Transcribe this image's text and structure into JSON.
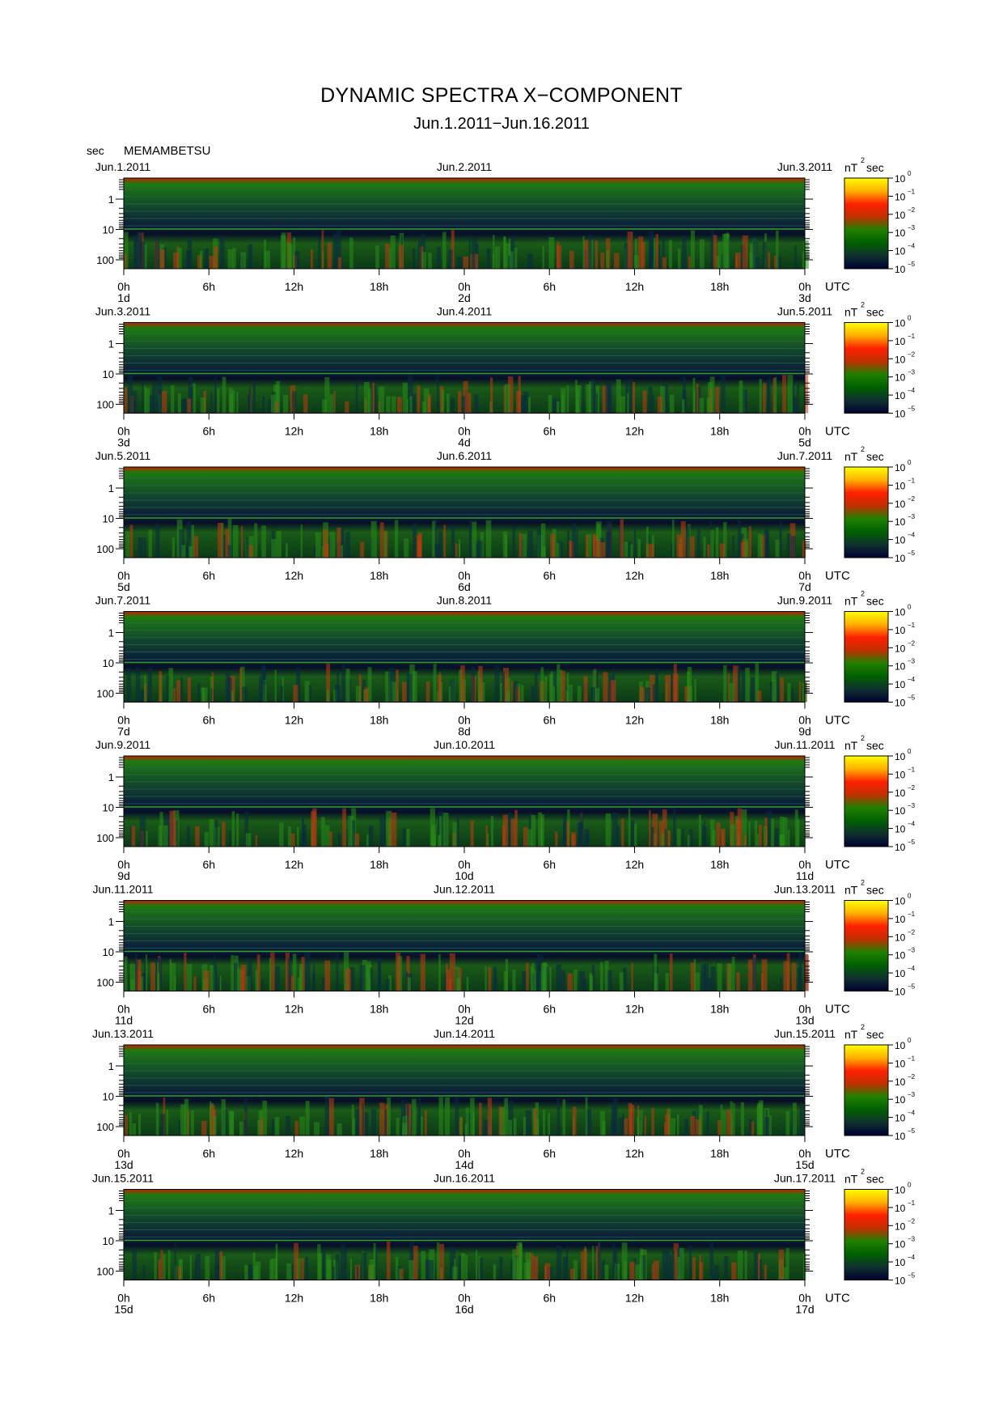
{
  "chart_data": {
    "type": "heatmap",
    "title": "DYNAMIC SPECTRA X−COMPONENT",
    "subtitle": "Jun.1.2011−Jun.16.2011",
    "ylabel": "sec",
    "station": "MEMAMBETSU",
    "xlabel_unit": "UTC",
    "colorbar_label": "nT",
    "colorbar_label_sup": "2",
    "colorbar_label_suffix": "sec",
    "colorbar_ticks": [
      {
        "base": "10",
        "exp": "0"
      },
      {
        "base": "10",
        "exp": "−1"
      },
      {
        "base": "10",
        "exp": "−2"
      },
      {
        "base": "10",
        "exp": "−3"
      },
      {
        "base": "10",
        "exp": "−4"
      },
      {
        "base": "10",
        "exp": "−5"
      }
    ],
    "colorbar_colors": [
      "#ffff00",
      "#ffb000",
      "#ff2000",
      "#c03000",
      "#208000",
      "#006000",
      "#103030",
      "#000030"
    ],
    "y_scale": "log",
    "y_ticks": [
      "1",
      "10",
      "100"
    ],
    "x_ticks": [
      "0h",
      "6h",
      "12h",
      "18h",
      "0h",
      "6h",
      "12h",
      "18h",
      "0h"
    ],
    "panels": [
      {
        "left_date": "Jun.1.2011",
        "mid_date": "Jun.2.2011",
        "right_date": "Jun.3.2011",
        "day_labels": [
          "1d",
          "2d",
          "3d"
        ]
      },
      {
        "left_date": "Jun.3.2011",
        "mid_date": "Jun.4.2011",
        "right_date": "Jun.5.2011",
        "day_labels": [
          "3d",
          "4d",
          "5d"
        ]
      },
      {
        "left_date": "Jun.5.2011",
        "mid_date": "Jun.6.2011",
        "right_date": "Jun.7.2011",
        "day_labels": [
          "5d",
          "6d",
          "7d"
        ]
      },
      {
        "left_date": "Jun.7.2011",
        "mid_date": "Jun.8.2011",
        "right_date": "Jun.9.2011",
        "day_labels": [
          "7d",
          "8d",
          "9d"
        ]
      },
      {
        "left_date": "Jun.9.2011",
        "mid_date": "Jun.10.2011",
        "right_date": "Jun.11.2011",
        "day_labels": [
          "9d",
          "10d",
          "11d"
        ]
      },
      {
        "left_date": "Jun.11.2011",
        "mid_date": "Jun.12.2011",
        "right_date": "Jun.13.2011",
        "day_labels": [
          "11d",
          "12d",
          "13d"
        ]
      },
      {
        "left_date": "Jun.13.2011",
        "mid_date": "Jun.14.2011",
        "right_date": "Jun.15.2011",
        "day_labels": [
          "13d",
          "14d",
          "15d"
        ]
      },
      {
        "left_date": "Jun.15.2011",
        "mid_date": "Jun.16.2011",
        "right_date": "Jun.17.2011",
        "day_labels": [
          "15d",
          "16d",
          "17d"
        ]
      }
    ]
  }
}
